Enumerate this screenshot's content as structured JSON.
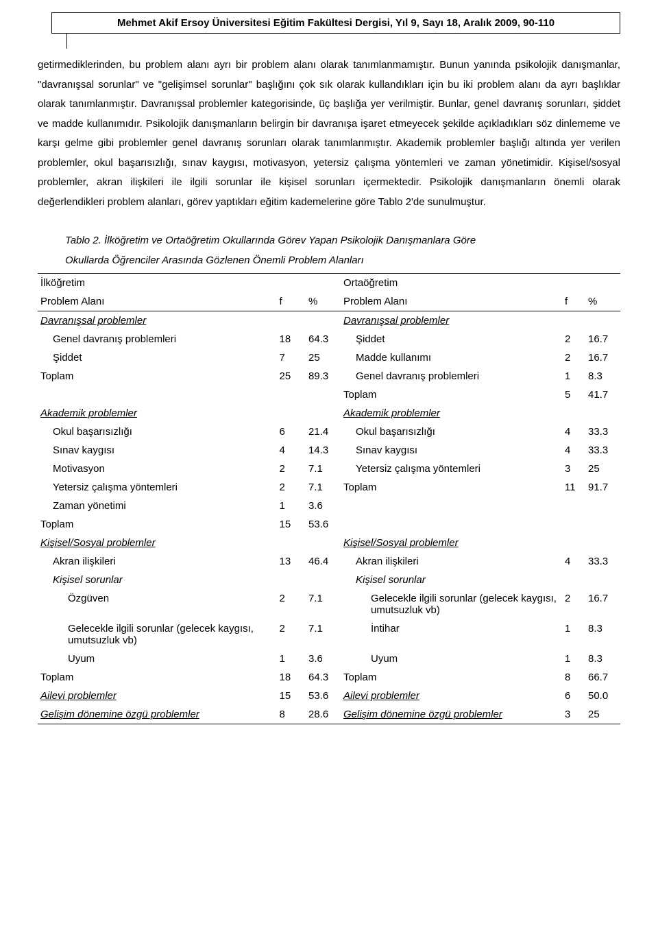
{
  "header": "Mehmet Akif Ersoy Üniversitesi Eğitim Fakültesi Dergisi, Yıl 9, Sayı 18, Aralık 2009, 90-110",
  "paragraph": "getirmediklerinden, bu problem alanı ayrı bir problem alanı olarak tanımlanmamıştır. Bunun yanında psikolojik danışmanlar, \"davranışsal sorunlar\" ve \"gelişimsel sorunlar\" başlığını çok sık olarak kullandıkları için bu iki problem alanı da ayrı başlıklar olarak tanımlanmıştır. Davranışsal problemler kategorisinde, üç başlığa yer verilmiştir. Bunlar, genel davranış sorunları, şiddet ve madde kullanımıdır. Psikolojik danışmanların belirgin bir davranışa işaret etmeyecek şekilde açıkladıkları söz dinlememe ve karşı gelme gibi problemler genel davranış sorunları olarak tanımlanmıştır. Akademik problemler başlığı altında yer verilen problemler,  okul başarısızlığı, sınav kaygısı, motivasyon, yetersiz çalışma yöntemleri ve zaman yönetimidir. Kişisel/sosyal problemler, akran ilişkileri ile ilgili sorunlar ile kişisel sorunları içermektedir. Psikolojik danışmanların önemli olarak değerlendikleri problem alanları, görev yaptıkları eğitim kademelerine göre Tablo 2'de sunulmuştur.",
  "caption1": "Tablo 2. İlköğretim ve Ortaöğretim Okullarında Görev Yapan Psikolojik Danışmanlara Göre",
  "caption2": "Okullarda Öğrenciler Arasında Gözlenen Önemli Problem Alanları",
  "headers": {
    "left": "İlköğretim",
    "right": "Ortaöğretim",
    "col1": "Problem Alanı",
    "col2": "f",
    "col3": "%",
    "col4": "Problem Alanı",
    "col5": "f",
    "col6": "%"
  },
  "sect": {
    "davranis": "Davranışsal problemler",
    "akademik": "Akademik problemler",
    "kisisel": "Kişisel/Sosyal problemler",
    "kisisel_sub": "Kişisel sorunlar",
    "ailevi": "Ailevi problemler",
    "gelisim": "Gelişim dönemine özgü problemler"
  },
  "rows": {
    "l1": {
      "label": "Genel davranış problemleri",
      "f": "18",
      "p": "64.3"
    },
    "l2": {
      "label": "Şiddet",
      "f": "7",
      "p": "25"
    },
    "l3": {
      "label": "Toplam",
      "f": "25",
      "p": "89.3"
    },
    "l4": {
      "label": "Okul başarısızlığı",
      "f": "6",
      "p": "21.4"
    },
    "l5": {
      "label": "Sınav kaygısı",
      "f": "4",
      "p": "14.3"
    },
    "l6": {
      "label": "Motivasyon",
      "f": "2",
      "p": "7.1"
    },
    "l7": {
      "label": "Yetersiz çalışma yöntemleri",
      "f": "2",
      "p": "7.1"
    },
    "l8": {
      "label": "Zaman yönetimi",
      "f": "1",
      "p": "3.6"
    },
    "l9": {
      "label": "Toplam",
      "f": "15",
      "p": "53.6"
    },
    "l10": {
      "label": "Akran ilişkileri",
      "f": "13",
      "p": "46.4"
    },
    "l11": {
      "label": "Özgüven",
      "f": "2",
      "p": "7.1"
    },
    "l12": {
      "label": "Gelecekle ilgili sorunlar (gelecek kaygısı, umutsuzluk vb)",
      "f": "2",
      "p": "7.1"
    },
    "l13": {
      "label": "Uyum",
      "f": "1",
      "p": "3.6"
    },
    "l14": {
      "label": "Toplam",
      "f": "18",
      "p": "64.3"
    },
    "l15": {
      "f": "15",
      "p": "53.6"
    },
    "l16": {
      "f": "8",
      "p": "28.6"
    },
    "r1": {
      "label": "Şiddet",
      "f": "2",
      "p": "16.7"
    },
    "r2": {
      "label": "Madde kullanımı",
      "f": "2",
      "p": "16.7"
    },
    "r3": {
      "label": "Genel davranış problemleri",
      "f": "1",
      "p": "8.3"
    },
    "r4": {
      "label": "Toplam",
      "f": "5",
      "p": "41.7"
    },
    "r5": {
      "label": "Okul başarısızlığı",
      "f": "4",
      "p": "33.3"
    },
    "r6": {
      "label": "Sınav kaygısı",
      "f": "4",
      "p": "33.3"
    },
    "r7": {
      "label": "Yetersiz çalışma yöntemleri",
      "f": "3",
      "p": "25"
    },
    "r8": {
      "label": "Toplam",
      "f": "11",
      "p": "91.7"
    },
    "r9": {
      "label": "Akran ilişkileri",
      "f": "4",
      "p": "33.3"
    },
    "r10": {
      "label": "Gelecekle ilgili sorunlar (gelecek kaygısı, umutsuzluk vb)",
      "f": "2",
      "p": "16.7"
    },
    "r11": {
      "label": "İntihar",
      "f": "1",
      "p": "8.3"
    },
    "r12": {
      "label": "Uyum",
      "f": "1",
      "p": "8.3"
    },
    "r13": {
      "label": "Toplam",
      "f": "8",
      "p": "66.7"
    },
    "r14": {
      "f": "6",
      "p": "50.0"
    },
    "r15": {
      "f": "3",
      "p": "25"
    }
  }
}
